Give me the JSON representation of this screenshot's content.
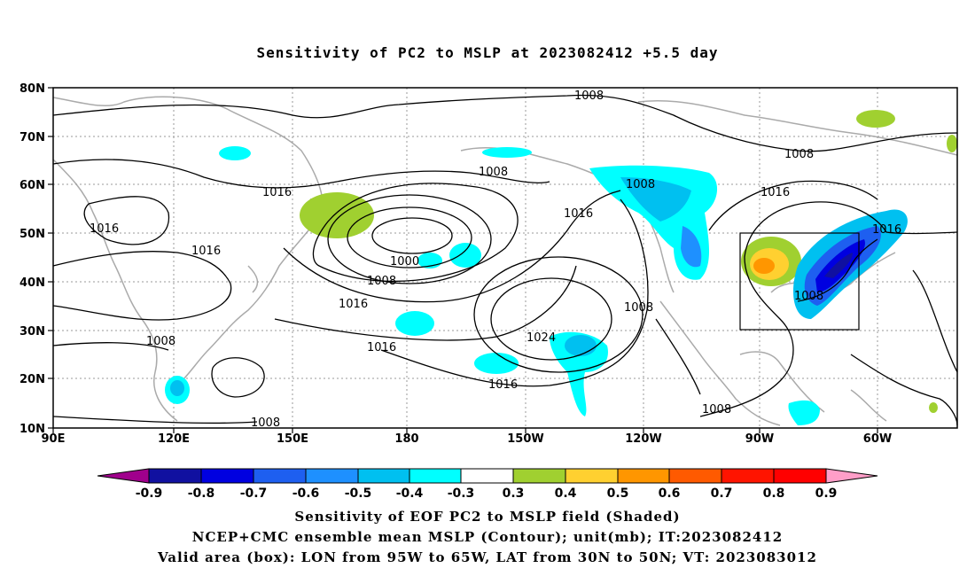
{
  "title": "Sensitivity of PC2 to MSLP at 2023082412 +5.5 day",
  "map": {
    "lon_labels": [
      "90E",
      "120E",
      "150E",
      "180",
      "150W",
      "120W",
      "90W",
      "60W"
    ],
    "lat_labels": [
      "80N",
      "70N",
      "60N",
      "50N",
      "40N",
      "30N",
      "20N",
      "10N"
    ],
    "contour_labels": [
      "1008",
      "1008",
      "1008",
      "1016",
      "1016",
      "1008",
      "1016",
      "1016",
      "1016",
      "1000",
      "1008",
      "1016",
      "1016",
      "1008",
      "1024",
      "1016",
      "1008",
      "1016",
      "1008",
      "1008",
      "1008"
    ],
    "valid_box": {
      "lon_range": [
        "95W",
        "65W"
      ],
      "lat_range": [
        "30N",
        "50N"
      ]
    },
    "colors": {
      "land": "#aaaaaa",
      "contour": "#000000",
      "box": "#000000",
      "grid": "#9a9a9a"
    }
  },
  "colorbar": {
    "labels": [
      "-0.9",
      "-0.8",
      "-0.7",
      "-0.6",
      "-0.5",
      "-0.4",
      "-0.3",
      "0.3",
      "0.4",
      "0.5",
      "0.6",
      "0.7",
      "0.8",
      "0.9"
    ],
    "colors": [
      "#a0008c",
      "#1010a0",
      "#0000e0",
      "#1e5ff0",
      "#1e90ff",
      "#00c0f0",
      "#00ffff",
      "#ffffff",
      "#a0d030",
      "#ffd030",
      "#ff9600",
      "#ff5a00",
      "#ff1400",
      "#ff0000",
      "#ff9ec8"
    ]
  },
  "caption": {
    "line1": "Sensitivity of EOF PC2 to MSLP field (Shaded)",
    "line2": "NCEP+CMC ensemble mean MSLP (Contour); unit(mb); IT:2023082412",
    "line3": "Valid area (box): LON from 95W to 65W, LAT from 30N to 50N; VT: 2023083012"
  }
}
